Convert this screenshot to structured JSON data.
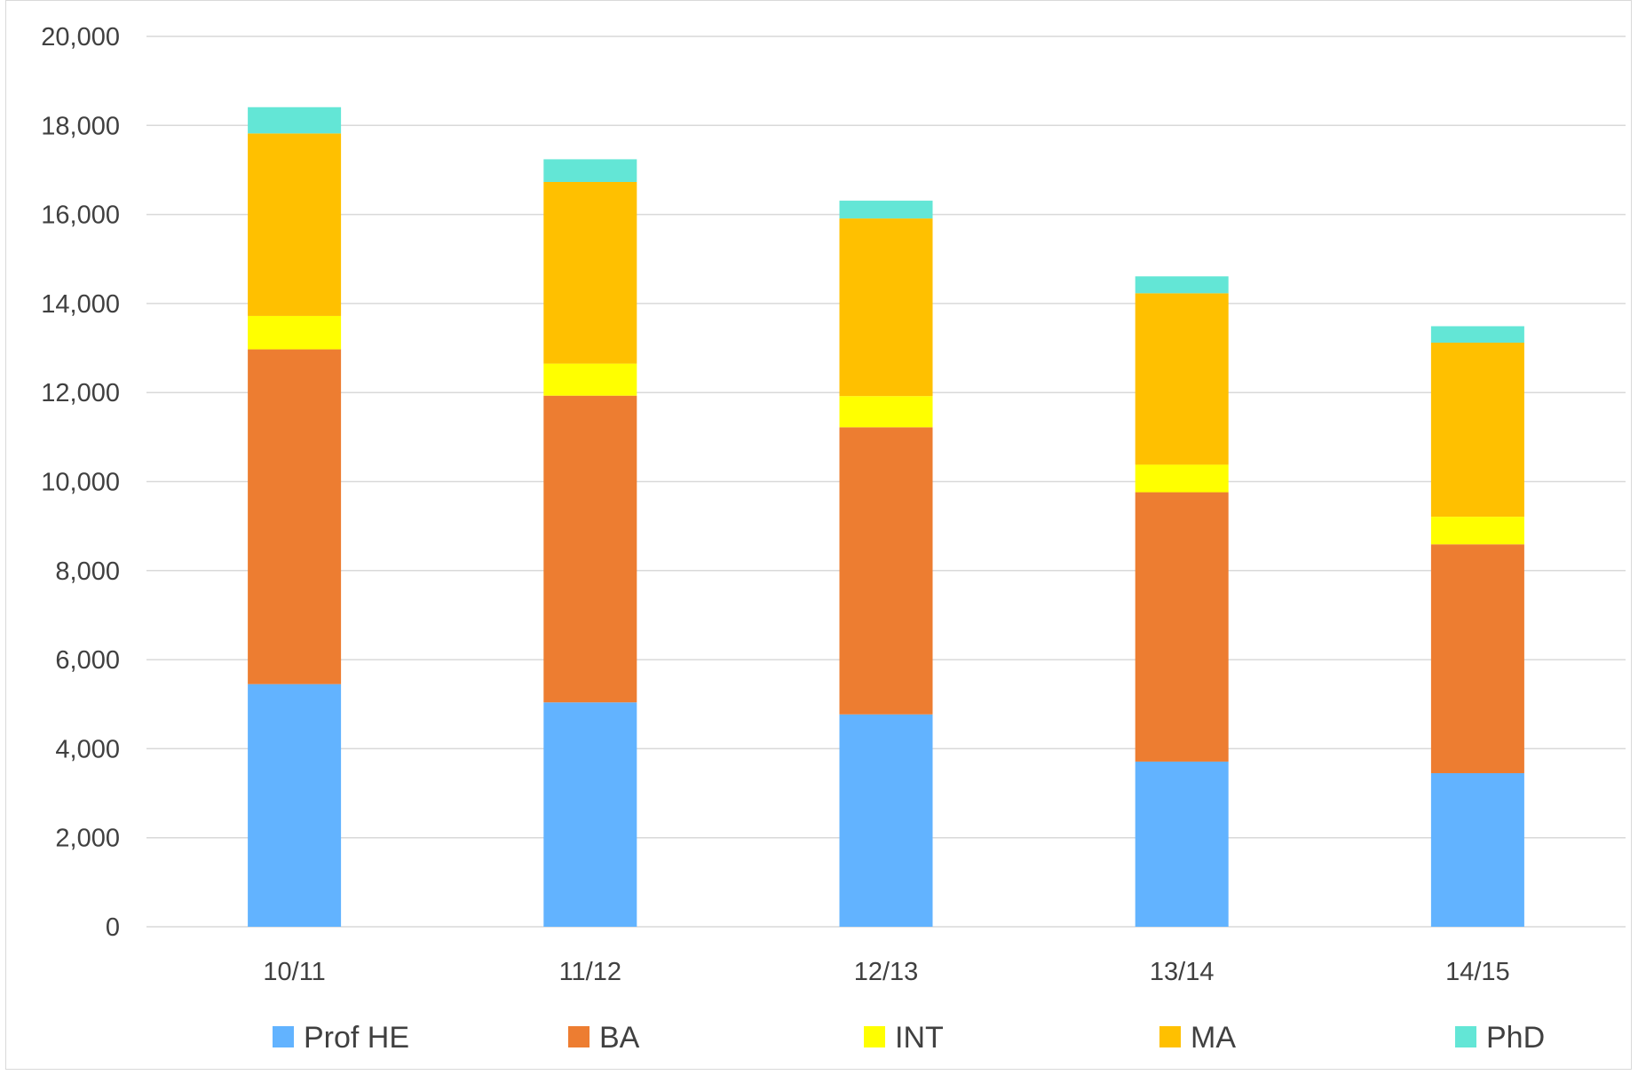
{
  "chart_data": {
    "type": "bar",
    "stacked": true,
    "categories": [
      "10/11",
      "11/12",
      "12/13",
      "13/14",
      "14/15"
    ],
    "series": [
      {
        "name": "Prof HE",
        "color": "#62B3FF",
        "values": [
          5450,
          5040,
          4770,
          3710,
          3450
        ]
      },
      {
        "name": "BA",
        "color": "#ED7D31",
        "values": [
          7520,
          6890,
          6450,
          6050,
          5140
        ]
      },
      {
        "name": "INT",
        "color": "#FFFF00",
        "values": [
          750,
          720,
          700,
          620,
          620
        ]
      },
      {
        "name": "MA",
        "color": "#FFC000",
        "values": [
          4100,
          4080,
          3990,
          3850,
          3910
        ]
      },
      {
        "name": "PhD",
        "color": "#63E6D6",
        "values": [
          590,
          510,
          400,
          380,
          370
        ]
      }
    ],
    "ylim": [
      0,
      20000
    ],
    "yticks": [
      "0",
      "2,000",
      "4,000",
      "6,000",
      "8,000",
      "10,000",
      "12,000",
      "14,000",
      "16,000",
      "18,000",
      "20,000"
    ],
    "ytick_values": [
      0,
      2000,
      4000,
      6000,
      8000,
      10000,
      12000,
      14000,
      16000,
      18000,
      20000
    ],
    "title": "",
    "xlabel": "",
    "ylabel": "",
    "grid": true,
    "legend_position": "bottom"
  }
}
